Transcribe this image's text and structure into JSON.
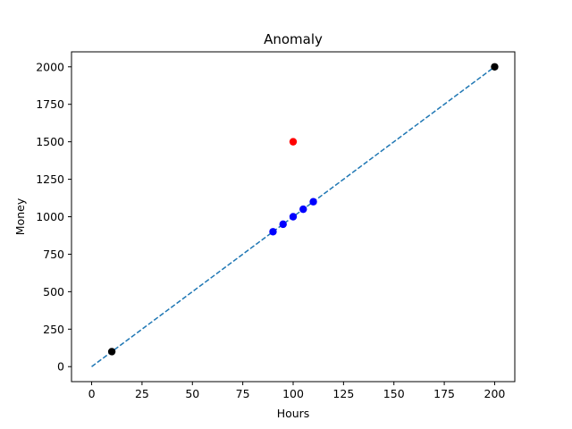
{
  "chart_data": {
    "type": "scatter",
    "title": "Anomaly",
    "xlabel": "Hours",
    "ylabel": "Money",
    "xlim": [
      -10,
      210
    ],
    "ylim": [
      -100,
      2100
    ],
    "xticks": [
      0,
      25,
      50,
      75,
      100,
      125,
      150,
      175,
      200
    ],
    "yticks": [
      0,
      250,
      500,
      750,
      1000,
      1250,
      1500,
      1750,
      2000
    ],
    "grid": false,
    "line": {
      "style": "dashed",
      "color": "#1f77b4",
      "x": [
        0,
        200
      ],
      "y": [
        0,
        2000
      ]
    },
    "series": [
      {
        "color": "#0000ff",
        "x": [
          90,
          95,
          100,
          105,
          110
        ],
        "y": [
          900,
          950,
          1000,
          1050,
          1100
        ]
      },
      {
        "color": "#000000",
        "x": [
          10,
          200
        ],
        "y": [
          100,
          2000
        ]
      },
      {
        "color": "#ff0000",
        "x": [
          100
        ],
        "y": [
          1500
        ]
      }
    ]
  }
}
